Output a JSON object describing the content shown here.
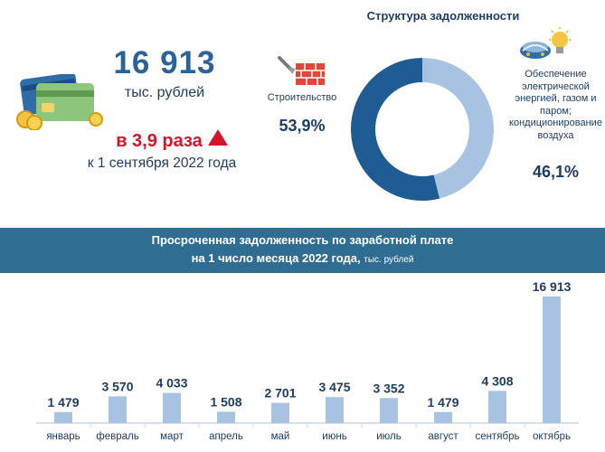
{
  "summary": {
    "total_value": "16 913",
    "total_unit": "тыс. рублей",
    "growth_text": "в 3,9 раза",
    "growth_date": "к 1 сентября 2022 года"
  },
  "structure": {
    "title": "Структура задолженности",
    "segments": [
      {
        "name": "Строительство",
        "percent_text": "53,9%",
        "share": 53.9,
        "color": "#1f5c94"
      },
      {
        "name": "Обеспечение электрической энергией, газом и паром; кондиционирование воздуха",
        "name_lines": [
          "Обеспечение",
          "электрической",
          "энергией, газом и",
          "паром;",
          "кондиционирование",
          "воздуха"
        ],
        "percent_text": "46,1%",
        "share": 46.1,
        "color": "#a8c2e2"
      }
    ]
  },
  "banner": {
    "line1": "Просроченная задолженность по заработной плате",
    "line2": "на 1 число месяца 2022 года,",
    "unit": "тыс. рублей"
  },
  "colors": {
    "dark_blue": "#1f3c66",
    "accent_blue": "#2b6297",
    "red": "#d6152b",
    "banner": "#2f6d93",
    "bar": "#a8c2e2"
  },
  "icons": [
    "credit-cards-icon",
    "brick-wall-icon",
    "power-plant-icon",
    "up-triangle-icon"
  ],
  "chart_data": {
    "type": "bar",
    "categories": [
      "январь",
      "февраль",
      "март",
      "апрель",
      "май",
      "июнь",
      "июль",
      "август",
      "сентябрь",
      "октябрь"
    ],
    "values": [
      1479,
      3570,
      4033,
      1508,
      2701,
      3475,
      3352,
      1479,
      4308,
      16913
    ],
    "value_labels": [
      "1 479",
      "3 570",
      "4 033",
      "1 508",
      "2 701",
      "3 475",
      "3 352",
      "1 479",
      "4 308",
      "16 913"
    ],
    "title": "Просроченная задолженность по заработной плате на 1 число месяца 2022 года, тыс. рублей",
    "ylim": [
      0,
      16913
    ],
    "grid": false,
    "legend": "none"
  }
}
